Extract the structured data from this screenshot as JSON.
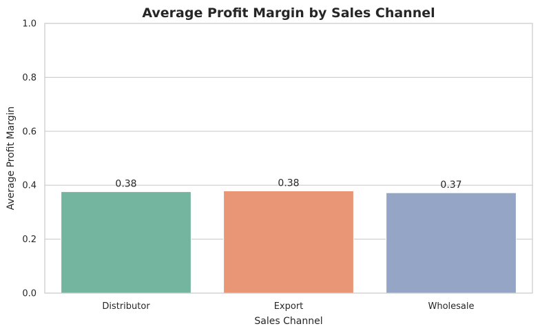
{
  "chart_data": {
    "type": "bar",
    "title": "Average Profit Margin by Sales Channel",
    "xlabel": "Sales Channel",
    "ylabel": "Average Profit Margin",
    "categories": [
      "Distributor",
      "Export",
      "Wholesale"
    ],
    "values": [
      0.376,
      0.379,
      0.372
    ],
    "data_labels": [
      "0.38",
      "0.38",
      "0.37"
    ],
    "colors": [
      "#74b59f",
      "#e89675",
      "#94a5c5"
    ],
    "ylim": [
      0,
      1.0
    ],
    "yticks": [
      0.0,
      0.2,
      0.4,
      0.6,
      0.8,
      1.0
    ],
    "ytick_labels": [
      "0.0",
      "0.2",
      "0.4",
      "0.6",
      "0.8",
      "1.0"
    ],
    "grid": true,
    "legend": "none"
  }
}
